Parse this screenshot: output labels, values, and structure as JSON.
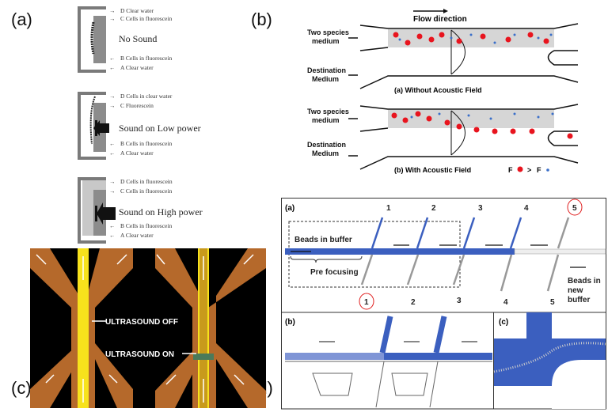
{
  "panel_labels": [
    "(a)",
    "(b)",
    "(c)",
    "(d)"
  ],
  "panel_a": {
    "states": [
      {
        "title": "No Sound",
        "labels": [
          "D  Clear water",
          "C  Cells in fluorescein",
          "B  Cells in fluorescein",
          "A  Clear water"
        ]
      },
      {
        "title": "Sound on Low power",
        "labels": [
          "D  Cells in clear water",
          "C  Fluorescein",
          "B  Cells in fluorescein",
          "A  Clear water"
        ]
      },
      {
        "title": "Sound on High power",
        "labels": [
          "D  Cells in fluorescein",
          "C  Cells in fluorescein",
          "B  Cells in fluorescein",
          "A  Clear water"
        ]
      }
    ]
  },
  "panel_b": {
    "flow_direction": "Flow direction",
    "two_species": [
      "Two species",
      "medium"
    ],
    "destination": [
      "Destination",
      "Medium"
    ],
    "caption_a": "(a) Without Acoustic Field",
    "caption_b": "(b) With Acoustic Field",
    "force_compare": "F",
    "force_gt": ">",
    "colors": {
      "large_particle": "#e8141e",
      "small_particle": "#3a6fc9"
    }
  },
  "panel_c": {
    "ultrasound_off": "ULTRASOUND OFF",
    "ultrasound_on": "ULTRASOUND ON",
    "colors": {
      "channel": "#b5692b",
      "stream": "#f7e21c",
      "background": "#000000"
    }
  },
  "panel_d": {
    "sub_a": "(a)",
    "sub_b": "(b)",
    "sub_c": "(c)",
    "top_numbers": [
      "1",
      "2",
      "3",
      "4",
      "5"
    ],
    "bottom_numbers": [
      "1",
      "2",
      "3",
      "4",
      "5"
    ],
    "beads_in_buffer": "Beads  in buffer",
    "pre_focusing": "Pre focusing",
    "beads_new_buffer": [
      "Beads  in",
      "new",
      "buffer"
    ],
    "colors": {
      "channel_blue": "#3b5fbf",
      "highlight": "#e02020"
    }
  }
}
